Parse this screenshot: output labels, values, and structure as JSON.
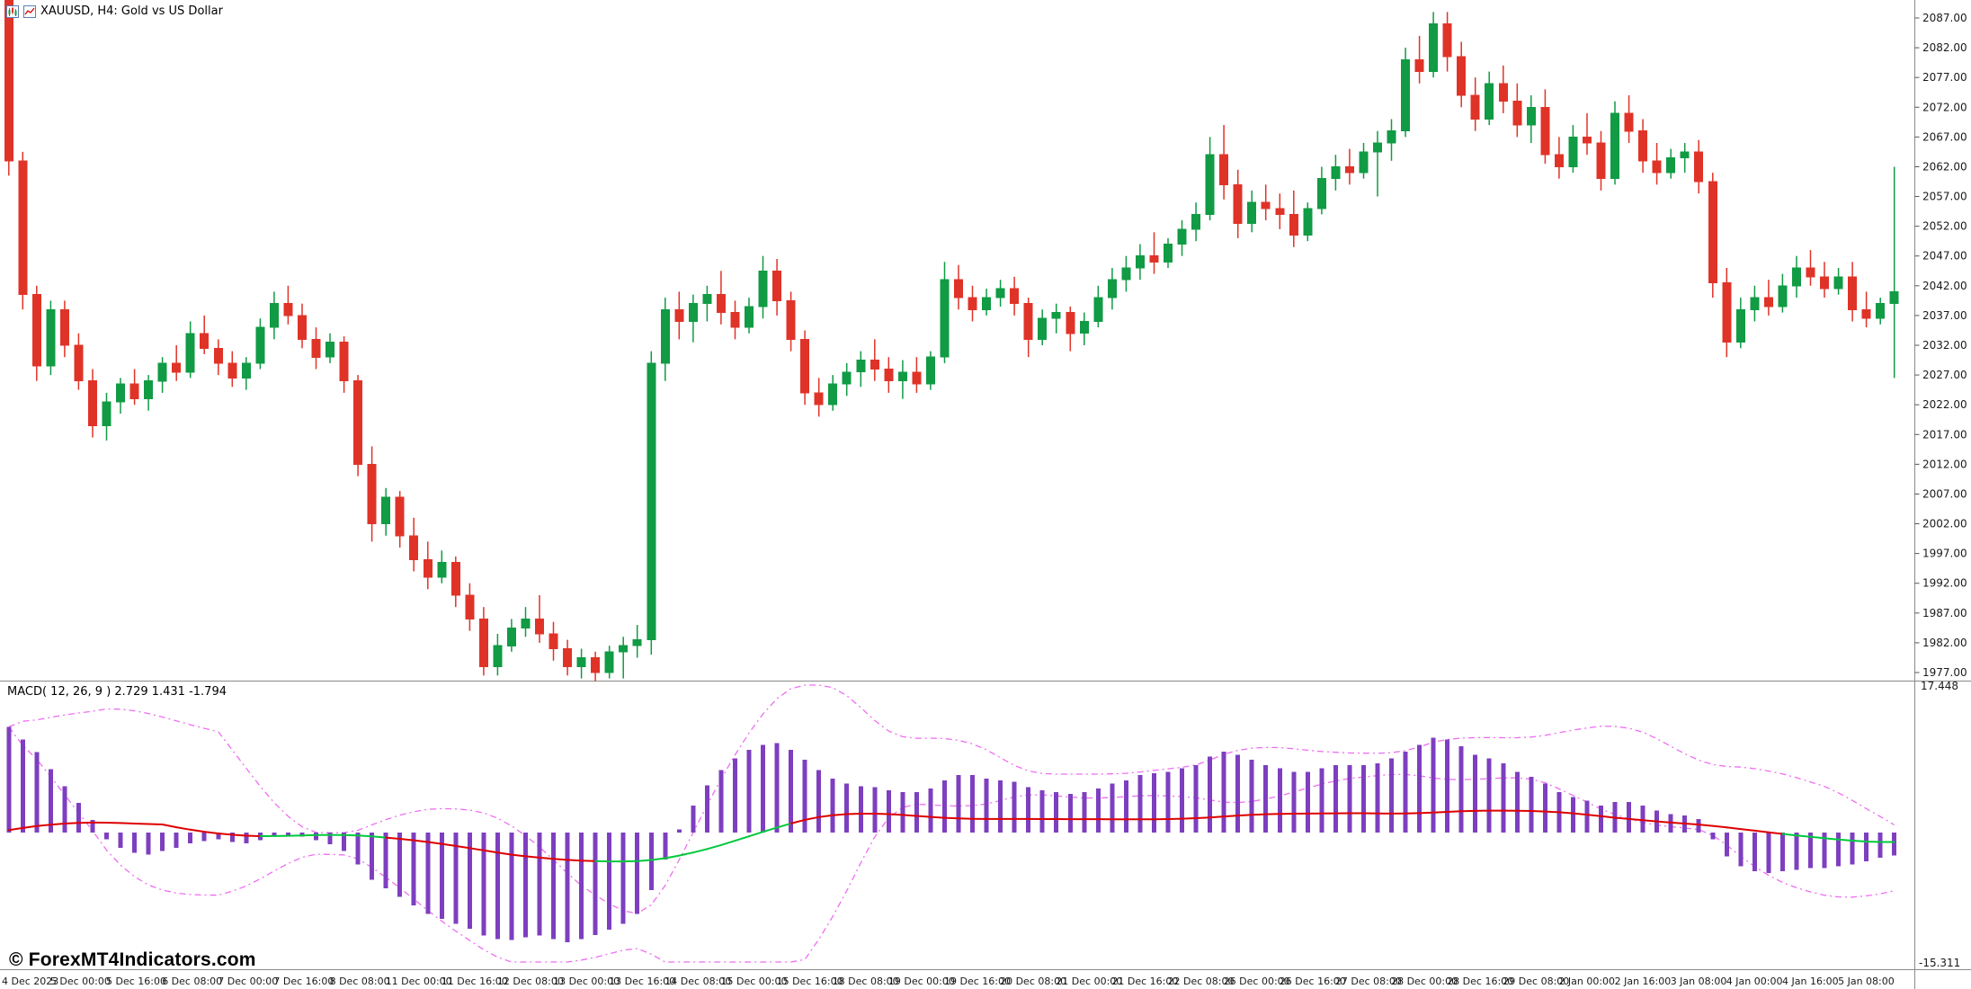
{
  "header": {
    "symbol_label": "XAUUSD, H4: Gold vs US Dollar"
  },
  "colors": {
    "background": "#ffffff",
    "bull": "#109b44",
    "bear": "#e03328",
    "histogram": "#7d3fbf",
    "signal_up": "#00c83c",
    "signal_down": "#dd0000",
    "band": "#ee6ef2",
    "axis_text": "#1a1a1a",
    "border": "#8a8a8a"
  },
  "price_axis": {
    "ticks": [
      "2087.00",
      "2082.00",
      "2077.00",
      "2072.00",
      "2067.00",
      "2062.00",
      "2057.00",
      "2052.00",
      "2047.00",
      "2042.00",
      "2037.00",
      "2032.00",
      "2027.00",
      "2022.00",
      "2017.00",
      "2012.00",
      "2007.00",
      "2002.00",
      "1997.00",
      "1992.00",
      "1987.00",
      "1982.00",
      "1977.00"
    ]
  },
  "macd_panel": {
    "label": "MACD( 12, 26, 9 ) 2.729 1.431 -1.794",
    "ticks": [
      "17.448",
      "-15.311"
    ]
  },
  "time_axis": {
    "labels": [
      "4 Dec 2023",
      "5 Dec 00:00",
      "5 Dec 16:00",
      "6 Dec 08:00",
      "7 Dec 00:00",
      "7 Dec 16:00",
      "8 Dec 08:00",
      "11 Dec 00:00",
      "11 Dec 16:00",
      "12 Dec 08:00",
      "13 Dec 00:00",
      "13 Dec 16:00",
      "14 Dec 08:00",
      "15 Dec 00:00",
      "15 Dec 16:00",
      "18 Dec 08:00",
      "19 Dec 00:00",
      "19 Dec 16:00",
      "20 Dec 08:00",
      "21 Dec 00:00",
      "21 Dec 16:00",
      "22 Dec 08:00",
      "26 Dec 00:00",
      "26 Dec 16:00",
      "27 Dec 08:00",
      "28 Dec 00:00",
      "28 Dec 16:00",
      "29 Dec 08:00",
      "2 Jan 00:00",
      "2 Jan 16:00",
      "3 Jan 08:00",
      "4 Jan 00:00",
      "4 Jan 16:00",
      "5 Jan 08:00"
    ]
  },
  "footer": {
    "copyright": "© ForexMT4Indicators.com"
  },
  "chart_data": [
    {
      "type": "candlestick",
      "symbol": "XAUUSD",
      "timeframe": "H4",
      "title": "Gold vs US Dollar",
      "ylim": [
        1975,
        2090
      ],
      "grid": false,
      "candles": [
        [
          2090.0,
          2093.5,
          2060.5,
          2063.0
        ],
        [
          2063.0,
          2064.5,
          2038.0,
          2040.5
        ],
        [
          2040.5,
          2042.0,
          2026.0,
          2028.5
        ],
        [
          2028.5,
          2039.5,
          2027.0,
          2038.0
        ],
        [
          2038.0,
          2039.5,
          2030.0,
          2032.0
        ],
        [
          2032.0,
          2034.0,
          2024.5,
          2026.0
        ],
        [
          2026.0,
          2028.0,
          2016.5,
          2018.5
        ],
        [
          2018.5,
          2024.0,
          2016.0,
          2022.5
        ],
        [
          2022.5,
          2026.5,
          2020.5,
          2025.5
        ],
        [
          2025.5,
          2028.0,
          2022.0,
          2023.0
        ],
        [
          2023.0,
          2027.0,
          2021.0,
          2026.0
        ],
        [
          2026.0,
          2030.0,
          2024.0,
          2029.0
        ],
        [
          2029.0,
          2032.0,
          2026.0,
          2027.5
        ],
        [
          2027.5,
          2036.0,
          2026.5,
          2034.0
        ],
        [
          2034.0,
          2037.0,
          2030.5,
          2031.5
        ],
        [
          2031.5,
          2033.0,
          2027.0,
          2029.0
        ],
        [
          2029.0,
          2031.0,
          2025.0,
          2026.5
        ],
        [
          2026.5,
          2030.0,
          2024.5,
          2029.0
        ],
        [
          2029.0,
          2036.5,
          2028.0,
          2035.0
        ],
        [
          2035.0,
          2041.0,
          2033.0,
          2039.0
        ],
        [
          2039.0,
          2042.0,
          2035.5,
          2037.0
        ],
        [
          2037.0,
          2039.0,
          2031.5,
          2033.0
        ],
        [
          2033.0,
          2035.0,
          2028.0,
          2030.0
        ],
        [
          2030.0,
          2034.0,
          2029.0,
          2032.5
        ],
        [
          2032.5,
          2033.5,
          2024.0,
          2026.0
        ],
        [
          2026.0,
          2027.0,
          2010.0,
          2012.0
        ],
        [
          2012.0,
          2015.0,
          1999.0,
          2002.0
        ],
        [
          2002.0,
          2008.0,
          2000.0,
          2006.5
        ],
        [
          2006.5,
          2007.5,
          1998.0,
          2000.0
        ],
        [
          2000.0,
          2003.0,
          1994.0,
          1996.0
        ],
        [
          1996.0,
          1999.0,
          1991.0,
          1993.0
        ],
        [
          1993.0,
          1997.5,
          1992.0,
          1995.5
        ],
        [
          1995.5,
          1996.5,
          1988.0,
          1990.0
        ],
        [
          1990.0,
          1992.0,
          1984.0,
          1986.0
        ],
        [
          1986.0,
          1988.0,
          1976.5,
          1978.0
        ],
        [
          1978.0,
          1983.5,
          1976.5,
          1981.5
        ],
        [
          1981.5,
          1986.0,
          1980.5,
          1984.5
        ],
        [
          1984.5,
          1988.0,
          1983.0,
          1986.0
        ],
        [
          1986.0,
          1990.0,
          1982.0,
          1983.5
        ],
        [
          1983.5,
          1985.5,
          1979.0,
          1981.0
        ],
        [
          1981.0,
          1982.5,
          1976.5,
          1978.0
        ],
        [
          1978.0,
          1981.0,
          1976.0,
          1979.5
        ],
        [
          1979.5,
          1980.5,
          1975.5,
          1977.0
        ],
        [
          1977.0,
          1981.5,
          1976.0,
          1980.5
        ],
        [
          1980.5,
          1983.0,
          1976.0,
          1981.5
        ],
        [
          1981.5,
          1985.0,
          1979.5,
          1982.5
        ],
        [
          1982.5,
          2031.0,
          1980.0,
          2029.0
        ],
        [
          2029.0,
          2040.0,
          2026.0,
          2038.0
        ],
        [
          2038.0,
          2041.0,
          2033.0,
          2036.0
        ],
        [
          2036.0,
          2040.5,
          2032.5,
          2039.0
        ],
        [
          2039.0,
          2042.0,
          2036.0,
          2040.5
        ],
        [
          2040.5,
          2044.5,
          2035.5,
          2037.5
        ],
        [
          2037.5,
          2039.5,
          2033.0,
          2035.0
        ],
        [
          2035.0,
          2040.0,
          2034.0,
          2038.5
        ],
        [
          2038.5,
          2047.0,
          2036.5,
          2044.5
        ],
        [
          2044.5,
          2046.5,
          2037.0,
          2039.5
        ],
        [
          2039.5,
          2041.0,
          2031.0,
          2033.0
        ],
        [
          2033.0,
          2034.5,
          2022.0,
          2024.0
        ],
        [
          2024.0,
          2026.5,
          2020.0,
          2022.0
        ],
        [
          2022.0,
          2027.0,
          2021.0,
          2025.5
        ],
        [
          2025.5,
          2029.0,
          2023.5,
          2027.5
        ],
        [
          2027.5,
          2031.0,
          2025.0,
          2029.5
        ],
        [
          2029.5,
          2033.0,
          2026.0,
          2028.0
        ],
        [
          2028.0,
          2030.0,
          2024.0,
          2026.0
        ],
        [
          2026.0,
          2029.5,
          2023.0,
          2027.5
        ],
        [
          2027.5,
          2030.0,
          2024.0,
          2025.5
        ],
        [
          2025.5,
          2031.0,
          2024.5,
          2030.0
        ],
        [
          2030.0,
          2046.0,
          2029.0,
          2043.0
        ],
        [
          2043.0,
          2045.5,
          2038.0,
          2040.0
        ],
        [
          2040.0,
          2042.0,
          2036.0,
          2038.0
        ],
        [
          2038.0,
          2041.5,
          2037.0,
          2040.0
        ],
        [
          2040.0,
          2043.0,
          2038.5,
          2041.5
        ],
        [
          2041.5,
          2043.5,
          2037.0,
          2039.0
        ],
        [
          2039.0,
          2040.0,
          2030.0,
          2033.0
        ],
        [
          2033.0,
          2038.0,
          2032.0,
          2036.5
        ],
        [
          2036.5,
          2039.0,
          2034.0,
          2037.5
        ],
        [
          2037.5,
          2038.5,
          2031.0,
          2034.0
        ],
        [
          2034.0,
          2037.5,
          2032.0,
          2036.0
        ],
        [
          2036.0,
          2042.0,
          2035.0,
          2040.0
        ],
        [
          2040.0,
          2045.0,
          2038.0,
          2043.0
        ],
        [
          2043.0,
          2047.0,
          2041.0,
          2045.0
        ],
        [
          2045.0,
          2049.0,
          2043.0,
          2047.0
        ],
        [
          2047.0,
          2051.0,
          2044.0,
          2046.0
        ],
        [
          2046.0,
          2050.0,
          2045.0,
          2049.0
        ],
        [
          2049.0,
          2053.0,
          2047.0,
          2051.5
        ],
        [
          2051.5,
          2056.0,
          2049.5,
          2054.0
        ],
        [
          2054.0,
          2067.0,
          2053.0,
          2064.0
        ],
        [
          2064.0,
          2069.0,
          2056.5,
          2059.0
        ],
        [
          2059.0,
          2061.5,
          2050.0,
          2052.5
        ],
        [
          2052.5,
          2058.0,
          2051.0,
          2056.0
        ],
        [
          2056.0,
          2059.0,
          2053.0,
          2055.0
        ],
        [
          2055.0,
          2057.5,
          2051.5,
          2054.0
        ],
        [
          2054.0,
          2058.0,
          2048.5,
          2050.5
        ],
        [
          2050.5,
          2056.0,
          2049.5,
          2055.0
        ],
        [
          2055.0,
          2062.0,
          2054.0,
          2060.0
        ],
        [
          2060.0,
          2064.0,
          2058.0,
          2062.0
        ],
        [
          2062.0,
          2065.0,
          2059.0,
          2061.0
        ],
        [
          2061.0,
          2066.0,
          2060.0,
          2064.5
        ],
        [
          2064.5,
          2068.0,
          2057.0,
          2066.0
        ],
        [
          2066.0,
          2070.0,
          2063.0,
          2068.0
        ],
        [
          2068.0,
          2082.0,
          2067.0,
          2080.0
        ],
        [
          2080.0,
          2084.0,
          2076.0,
          2078.0
        ],
        [
          2078.0,
          2088.0,
          2077.0,
          2086.0
        ],
        [
          2086.0,
          2088.0,
          2078.0,
          2080.5
        ],
        [
          2080.5,
          2083.0,
          2072.0,
          2074.0
        ],
        [
          2074.0,
          2077.0,
          2068.0,
          2070.0
        ],
        [
          2070.0,
          2078.0,
          2069.0,
          2076.0
        ],
        [
          2076.0,
          2079.0,
          2071.0,
          2073.0
        ],
        [
          2073.0,
          2076.0,
          2067.0,
          2069.0
        ],
        [
          2069.0,
          2074.0,
          2066.0,
          2072.0
        ],
        [
          2072.0,
          2075.0,
          2062.5,
          2064.0
        ],
        [
          2064.0,
          2067.0,
          2060.0,
          2062.0
        ],
        [
          2062.0,
          2069.0,
          2061.0,
          2067.0
        ],
        [
          2067.0,
          2071.0,
          2064.0,
          2066.0
        ],
        [
          2066.0,
          2068.0,
          2058.0,
          2060.0
        ],
        [
          2060.0,
          2073.0,
          2059.0,
          2071.0
        ],
        [
          2071.0,
          2074.0,
          2066.0,
          2068.0
        ],
        [
          2068.0,
          2070.0,
          2061.0,
          2063.0
        ],
        [
          2063.0,
          2066.0,
          2059.0,
          2061.0
        ],
        [
          2061.0,
          2065.0,
          2060.0,
          2063.5
        ],
        [
          2063.5,
          2066.0,
          2061.0,
          2064.5
        ],
        [
          2064.5,
          2066.5,
          2057.5,
          2059.5
        ],
        [
          2059.5,
          2061.0,
          2040.0,
          2042.5
        ],
        [
          2042.5,
          2045.0,
          2030.0,
          2032.5
        ],
        [
          2032.5,
          2040.0,
          2031.5,
          2038.0
        ],
        [
          2038.0,
          2042.0,
          2036.0,
          2040.0
        ],
        [
          2040.0,
          2043.0,
          2037.0,
          2038.5
        ],
        [
          2038.5,
          2044.0,
          2037.5,
          2042.0
        ],
        [
          2042.0,
          2047.0,
          2040.0,
          2045.0
        ],
        [
          2045.0,
          2048.0,
          2042.0,
          2043.5
        ],
        [
          2043.5,
          2046.0,
          2040.0,
          2041.5
        ],
        [
          2041.5,
          2045.0,
          2040.5,
          2043.5
        ],
        [
          2043.5,
          2046.0,
          2036.0,
          2038.0
        ],
        [
          2038.0,
          2041.0,
          2035.0,
          2036.5
        ],
        [
          2036.5,
          2040.0,
          2035.5,
          2039.0
        ],
        [
          2039.0,
          2062.0,
          2026.5,
          2041.0
        ]
      ]
    },
    {
      "type": "bar",
      "name": "MACD",
      "params": "12, 26, 9",
      "displayed_values": [
        2.729,
        1.431,
        -1.794
      ],
      "ylim": [
        -15.311,
        17.448
      ],
      "legend_position": "top-left",
      "grid": false,
      "histogram": [
        12.5,
        11.0,
        9.5,
        7.5,
        5.5,
        3.5,
        1.5,
        -0.8,
        -1.8,
        -2.4,
        -2.6,
        -2.2,
        -1.8,
        -1.3,
        -1.0,
        -0.8,
        -1.1,
        -1.3,
        -0.9,
        -0.5,
        -0.3,
        -0.5,
        -0.9,
        -1.4,
        -2.2,
        -3.8,
        -5.6,
        -6.6,
        -7.6,
        -8.6,
        -9.6,
        -10.2,
        -10.8,
        -11.4,
        -12.2,
        -12.6,
        -12.7,
        -12.4,
        -12.2,
        -12.6,
        -13.0,
        -12.6,
        -12.1,
        -11.5,
        -10.8,
        -9.6,
        -6.8,
        -3.2,
        0.4,
        3.2,
        5.6,
        7.4,
        8.8,
        9.8,
        10.4,
        10.6,
        9.8,
        8.6,
        7.4,
        6.4,
        5.8,
        5.5,
        5.4,
        5.0,
        4.8,
        4.8,
        5.2,
        6.2,
        6.8,
        6.8,
        6.4,
        6.2,
        6.0,
        5.4,
        5.0,
        4.8,
        4.6,
        4.8,
        5.2,
        5.8,
        6.2,
        6.8,
        7.0,
        7.2,
        7.6,
        8.0,
        9.0,
        9.6,
        9.2,
        8.6,
        8.0,
        7.6,
        7.2,
        7.2,
        7.6,
        8.0,
        8.0,
        8.0,
        8.2,
        8.8,
        9.6,
        10.4,
        11.2,
        11.0,
        10.2,
        9.2,
        8.8,
        8.2,
        7.2,
        6.6,
        5.8,
        4.8,
        4.2,
        3.8,
        3.2,
        3.6,
        3.6,
        3.2,
        2.6,
        2.2,
        2.0,
        1.6,
        -0.8,
        -2.8,
        -4.0,
        -4.6,
        -4.8,
        -4.6,
        -4.4,
        -4.2,
        -4.2,
        -4.0,
        -3.8,
        -3.4,
        -3.0,
        -2.7
      ],
      "signal_green_ranges": [
        [
          19,
          27
        ],
        [
          43,
          56
        ],
        [
          128,
          135
        ]
      ]
    }
  ]
}
